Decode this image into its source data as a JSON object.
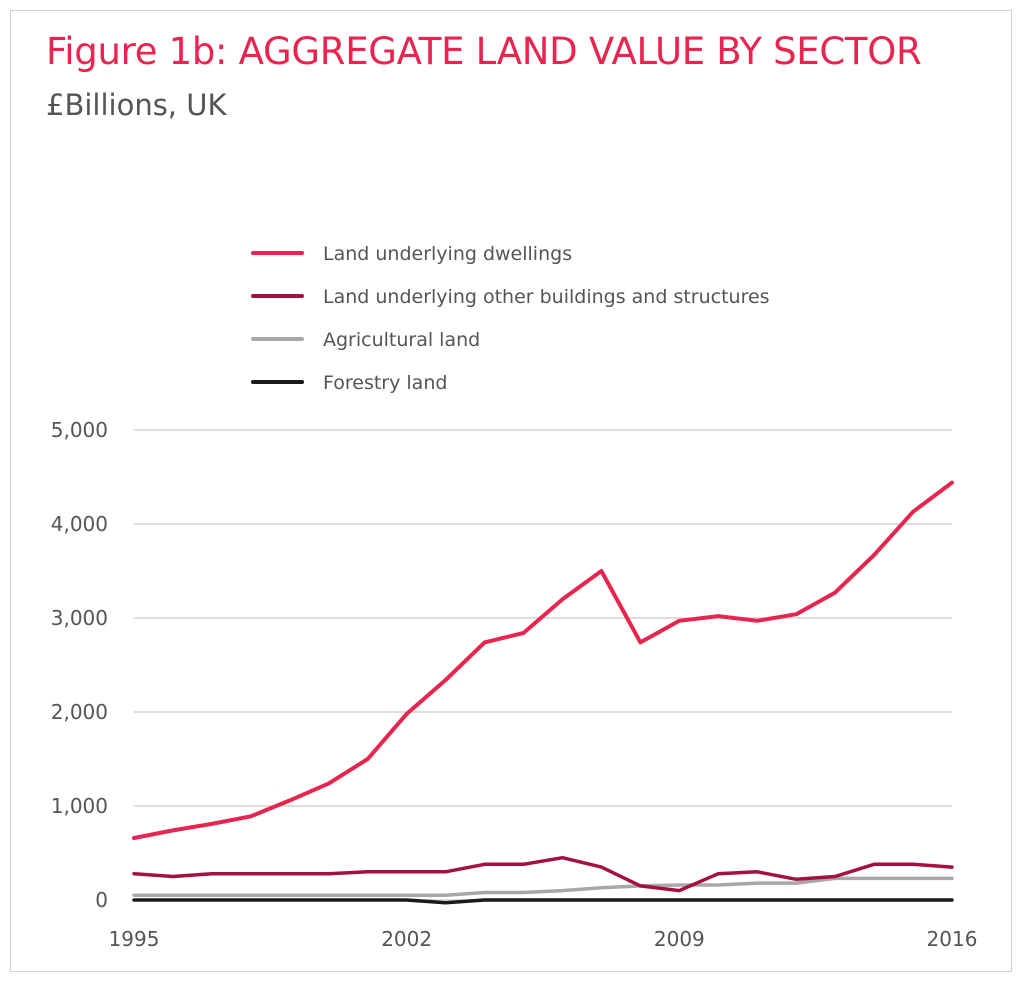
{
  "header": {
    "title": "Figure 1b: AGGREGATE LAND VALUE BY SECTOR",
    "subtitle": "£Billions, UK"
  },
  "chart_data": {
    "type": "line",
    "title": "Figure 1b: AGGREGATE LAND VALUE BY SECTOR",
    "subtitle": "£Billions, UK",
    "xlabel": "",
    "ylabel": "",
    "xlim": [
      1995,
      2016
    ],
    "ylim": [
      0,
      5000
    ],
    "x_ticks": [
      1995,
      2002,
      2009,
      2016
    ],
    "x_tick_labels": [
      "1995",
      "2002",
      "2009",
      "2016"
    ],
    "y_ticks": [
      0,
      1000,
      2000,
      3000,
      4000,
      5000
    ],
    "y_tick_labels": [
      "0",
      "1,000",
      "2,000",
      "3,000",
      "4,000",
      "5,000"
    ],
    "grid": "horizontal",
    "legend_position": "top",
    "x": [
      1995,
      1996,
      1997,
      1998,
      1999,
      2000,
      2001,
      2002,
      2003,
      2004,
      2005,
      2006,
      2007,
      2008,
      2009,
      2010,
      2011,
      2012,
      2013,
      2014,
      2015,
      2016
    ],
    "series": [
      {
        "name": "Land underlying dwellings",
        "color": "#e8254f",
        "values": [
          660,
          740,
          810,
          890,
          1060,
          1240,
          1500,
          1980,
          2340,
          2740,
          2840,
          3200,
          3500,
          2740,
          2970,
          3020,
          2970,
          3040,
          3270,
          3670,
          4130,
          4440
        ]
      },
      {
        "name": "Land underlying other buildings and structures",
        "color": "#a3123e",
        "values": [
          280,
          250,
          280,
          280,
          280,
          280,
          300,
          300,
          300,
          380,
          380,
          450,
          350,
          150,
          100,
          280,
          300,
          220,
          250,
          380,
          380,
          350
        ]
      },
      {
        "name": "Agricultural land",
        "color": "#a8a8a8",
        "values": [
          50,
          50,
          50,
          50,
          50,
          50,
          50,
          50,
          50,
          80,
          80,
          100,
          130,
          150,
          160,
          160,
          180,
          180,
          230,
          230,
          230,
          230
        ]
      },
      {
        "name": "Forestry land",
        "color": "#1a1a1a",
        "values": [
          0,
          0,
          0,
          0,
          0,
          0,
          0,
          0,
          -30,
          0,
          0,
          0,
          0,
          0,
          0,
          0,
          0,
          0,
          0,
          0,
          0,
          0
        ]
      }
    ]
  }
}
